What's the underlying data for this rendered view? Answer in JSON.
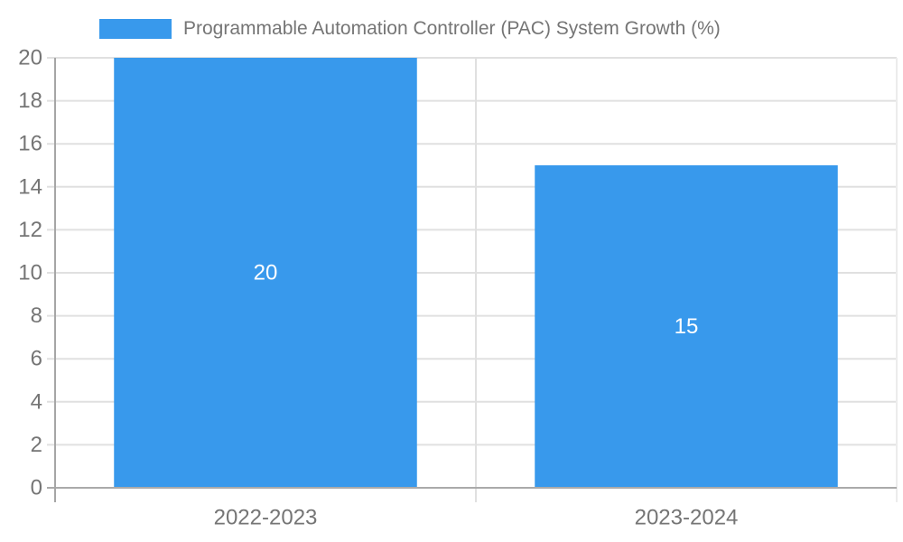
{
  "chart_data": {
    "type": "bar",
    "title": "Programmable Automation Controller (PAC) System Growth (%)",
    "categories": [
      "2022-2023",
      "2023-2024"
    ],
    "series": [
      {
        "name": "Programmable Automation Controller (PAC) System Growth (%)",
        "values": [
          20,
          15
        ]
      }
    ],
    "data_labels": [
      "20",
      "15"
    ],
    "xlabel": "",
    "ylabel": "",
    "ylim": [
      0,
      20
    ],
    "ytick_step": 2,
    "yticks": [
      0,
      2,
      4,
      6,
      8,
      10,
      12,
      14,
      16,
      18,
      20
    ],
    "grid": true,
    "legend_position": "top-left",
    "colors": {
      "bar": "#3899EC",
      "grid": "#E0E0E0",
      "category_divider": "#E0E0E0",
      "right_border": "#ECECEC",
      "y_axis_line": "#A6A6A6",
      "x_baseline": "#AAAAAA",
      "tick_text": "#757575",
      "axis_label_text": "#757575",
      "legend_text": "#757575",
      "value_label": "#FFFFFF",
      "background": "#FFFFFF"
    }
  }
}
